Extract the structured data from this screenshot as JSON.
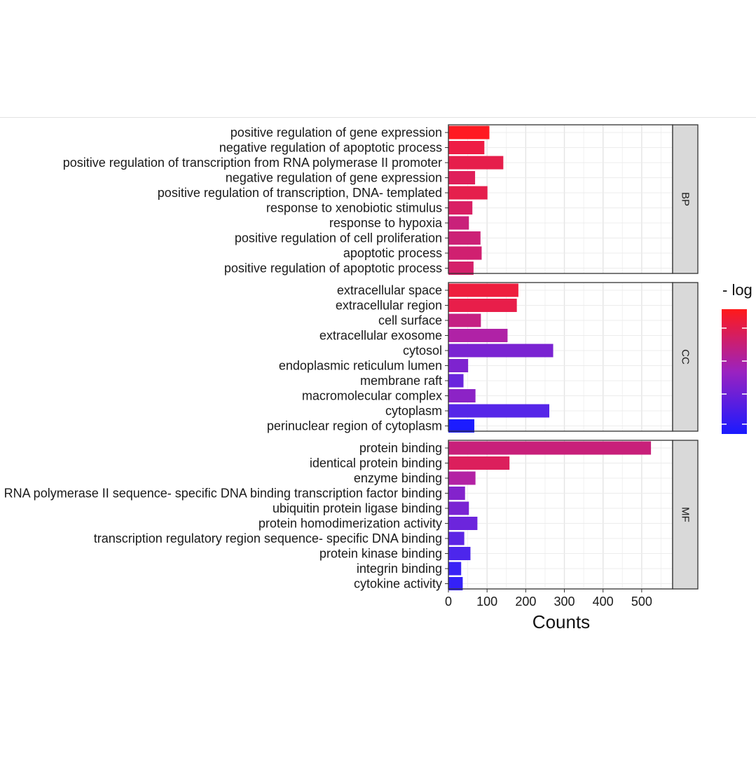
{
  "chart_data": {
    "type": "bar",
    "orientation": "horizontal",
    "xlabel": "Counts",
    "xticks": [
      0,
      100,
      200,
      300,
      400,
      500
    ],
    "xlim": [
      0,
      580
    ],
    "legend": {
      "title": "- log",
      "position": "right",
      "color_low": "#1a1aff",
      "color_high": "#ff1a1a"
    },
    "facets": [
      {
        "label": "BP",
        "categories": [
          "positive regulation of gene expression",
          "negative regulation of apoptotic process",
          "positive regulation of transcription from RNA polymerase II promoter",
          "negative regulation of gene expression",
          "positive regulation of transcription, DNA- templated",
          "response to xenobiotic stimulus",
          "response to hypoxia",
          "positive regulation of cell proliferation",
          "apoptotic process",
          "positive regulation of apoptotic process"
        ],
        "values": [
          106,
          93,
          142,
          69,
          101,
          62,
          53,
          83,
          86,
          65
        ],
        "colors": [
          "#ff1a22",
          "#ee1d45",
          "#e61e4b",
          "#df1f5a",
          "#e51f4c",
          "#d91f64",
          "#c9217a",
          "#cc2176",
          "#d02070",
          "#d4206a"
        ]
      },
      {
        "label": "CC",
        "categories": [
          "extracellular space",
          "extracellular region",
          "cell surface",
          "extracellular exosome",
          "cytosol",
          "endoplasmic reticulum lumen",
          "membrane raft",
          "macromolecular complex",
          "cytoplasm",
          "perinuclear region of cytoplasm"
        ],
        "values": [
          181,
          177,
          84,
          153,
          271,
          51,
          39,
          70,
          261,
          67
        ],
        "colors": [
          "#ee1e3e",
          "#e81e4a",
          "#c52083",
          "#b022a6",
          "#7a23d2",
          "#7e23cf",
          "#6a25dd",
          "#8c23c6",
          "#5626e8",
          "#1c1cff"
        ]
      },
      {
        "label": "MF",
        "categories": [
          "protein binding",
          "identical protein binding",
          "enzyme binding",
          "RNA polymerase II sequence- specific DNA binding transcription factor binding",
          "ubiquitin protein ligase binding",
          "protein homodimerization activity",
          "transcription regulatory region sequence- specific DNA binding",
          "protein kinase binding",
          "integrin binding",
          "cytokine activity"
        ],
        "values": [
          524,
          158,
          70,
          43,
          53,
          75,
          41,
          57,
          33,
          37
        ],
        "colors": [
          "#c8207a",
          "#dc1f5c",
          "#b322a4",
          "#8323cc",
          "#7a24d3",
          "#6c25dc",
          "#5d25e4",
          "#4d26ec",
          "#3a22f5",
          "#3421f7"
        ]
      }
    ]
  }
}
